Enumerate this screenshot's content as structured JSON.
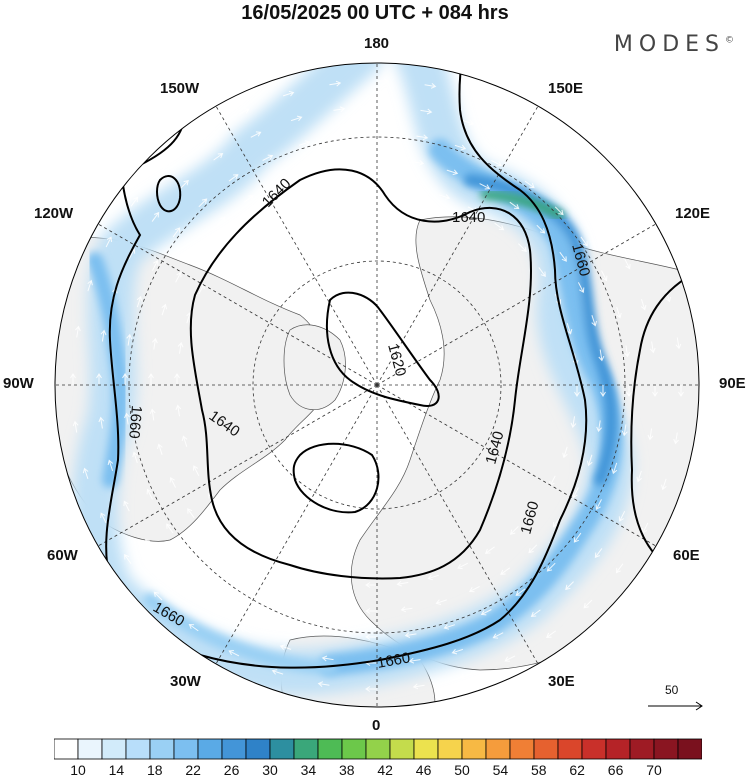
{
  "title": "16/05/2025  00 UTC  + 084 hrs",
  "logo": "MODES",
  "logo_mark": "©",
  "longitude_labels": [
    "180",
    "150E",
    "120E",
    "90E",
    "60E",
    "30E",
    "0",
    "30W",
    "60W",
    "90W",
    "120W",
    "150W"
  ],
  "contours": [
    {
      "label": "1620",
      "value": 1620
    },
    {
      "label": "1640",
      "value": 1640
    },
    {
      "label": "1660",
      "value": 1660
    }
  ],
  "contour_label_instances": [
    "1640",
    "1640",
    "1640",
    "1640",
    "1660",
    "1660",
    "1660",
    "1660",
    "1660",
    "1620"
  ],
  "vector_scale_label": "50",
  "colorbar": {
    "tick_labels": [
      "10",
      "14",
      "18",
      "22",
      "26",
      "30",
      "34",
      "38",
      "42",
      "46",
      "50",
      "54",
      "58",
      "62",
      "66",
      "70"
    ],
    "colors": [
      "#ffffff",
      "#eaf5fd",
      "#d2ebfa",
      "#b8defa",
      "#9ad0f4",
      "#7cbff0",
      "#5aaae6",
      "#4395d8",
      "#2f82c8",
      "#2d8fa0",
      "#3aa77a",
      "#4ebb55",
      "#6cc84a",
      "#93d24a",
      "#c4dc4c",
      "#ece24e",
      "#f6d34c",
      "#f7b944",
      "#f59c3c",
      "#f07f35",
      "#e6612f",
      "#da462b",
      "#c9302a",
      "#b52327",
      "#9e1b24",
      "#8a1521",
      "#7a111e"
    ]
  },
  "colors": {
    "land": "#f1f1f1",
    "jet_light": "#bfe0f6",
    "jet_mid": "#7cbff0",
    "jet_strong": "#4395d8",
    "jet_max": "#3aa77a"
  }
}
